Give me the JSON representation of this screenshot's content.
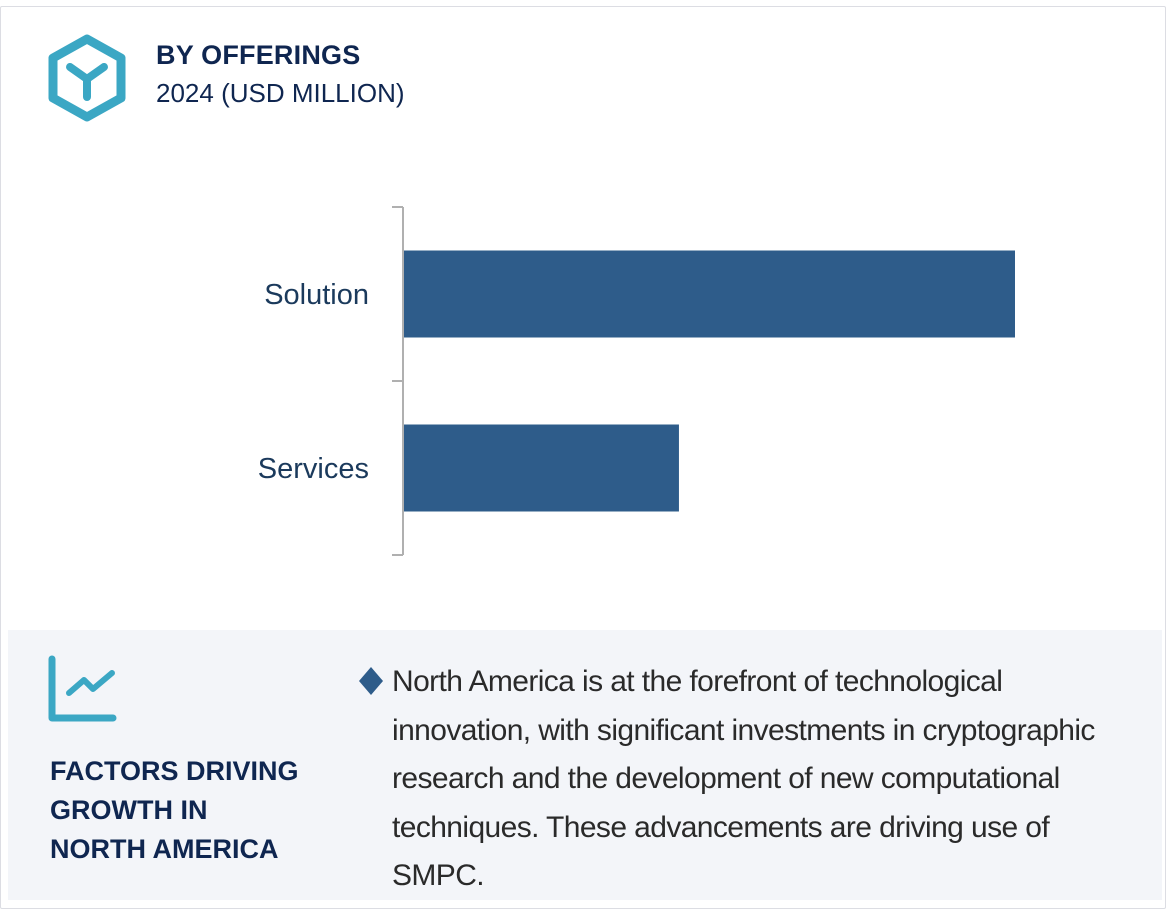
{
  "header": {
    "icon": "cube-hexagon-icon",
    "title": "BY OFFERINGS",
    "subtitle": "2024 (USD MILLION)"
  },
  "colors": {
    "bar": "#2e5c8a",
    "accent": "#3ba7c4",
    "title": "#0f2650",
    "panel_bg": "#f3f5f9"
  },
  "chart_data": {
    "type": "bar",
    "orientation": "horizontal",
    "title": "BY OFFERINGS",
    "subtitle": "2024 (USD MILLION)",
    "categories": [
      "Solution",
      "Services"
    ],
    "values": [
      100,
      45
    ],
    "value_note": "relative bar lengths (no axis values shown)",
    "xlabel": "",
    "ylabel": "",
    "xlim": [
      0,
      100
    ],
    "grid": false,
    "legend": "none"
  },
  "panel": {
    "icon": "line-chart-icon",
    "heading": "FACTORS DRIVING GROWTH IN NORTH AMERICA",
    "heading_lines": [
      "FACTORS DRIVING",
      "GROWTH IN",
      "NORTH AMERICA"
    ],
    "bullet_icon": "diamond-bullet-icon",
    "bullet_text": "North America is at the forefront of technological innovation, with significant investments in cryptographic research and the development of new computational techniques. These advancements are driving use of SMPC."
  }
}
